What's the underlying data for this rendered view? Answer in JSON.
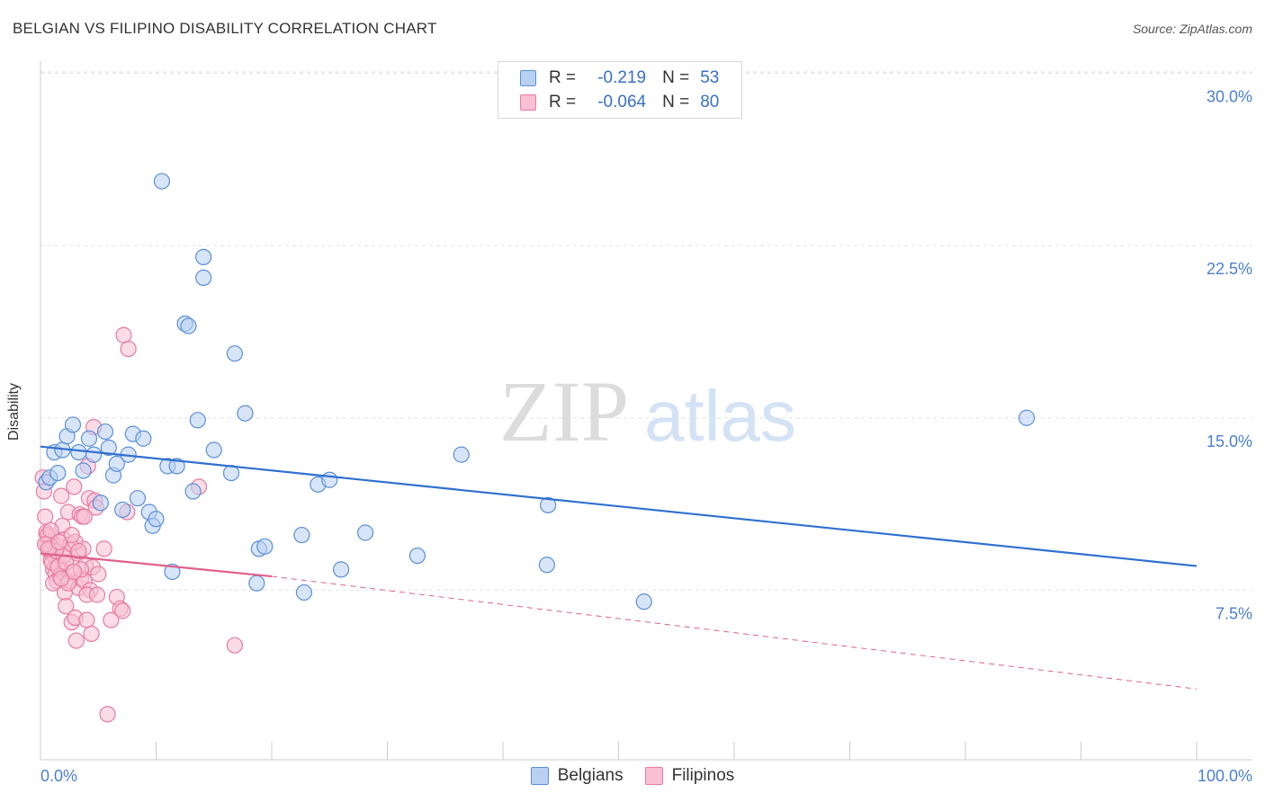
{
  "title": "BELGIAN VS FILIPINO DISABILITY CORRELATION CHART",
  "source": "Source: ZipAtlas.com",
  "watermark": {
    "part1": "ZIP",
    "part2": "atlas"
  },
  "legend_top": {
    "rows": [
      {
        "r_label": "R =",
        "r_value": "-0.219",
        "n_label": "N =",
        "n_value": "53"
      },
      {
        "r_label": "R =",
        "r_value": "-0.064",
        "n_label": "N =",
        "n_value": "80"
      }
    ]
  },
  "legend_bottom": {
    "items": [
      "Belgians",
      "Filipinos"
    ]
  },
  "colors": {
    "belgians_fill": "#b8d0f2",
    "belgians_stroke": "#5a8fd8",
    "belgians_line": "#2f6fd0",
    "filipinos_fill": "#f8c0d2",
    "filipinos_stroke": "#e87aa0",
    "filipinos_line": "#e0608a",
    "tick_label": "#4a7fd0",
    "grid": "#e2e2e2"
  },
  "chart_data": {
    "type": "scatter",
    "title": "BELGIAN VS FILIPINO DISABILITY CORRELATION CHART",
    "xlabel": "",
    "ylabel": "Disability",
    "xlim": [
      0,
      100
    ],
    "ylim": [
      0,
      31
    ],
    "x_tick_labels": [
      "0.0%",
      "100.0%"
    ],
    "y_ticks": [
      7.5,
      15.0,
      22.5,
      30.0
    ],
    "y_tick_labels": [
      "7.5%",
      "15.0%",
      "22.5%",
      "30.0%"
    ],
    "grid": "horizontal dashed",
    "legend_position": "top-center and bottom",
    "series": [
      {
        "name": "Belgians",
        "points": [
          [
            0.5,
            12.2
          ],
          [
            0.8,
            12.4
          ],
          [
            1.2,
            13.5
          ],
          [
            1.5,
            12.6
          ],
          [
            1.9,
            13.6
          ],
          [
            2.3,
            14.2
          ],
          [
            2.8,
            14.7
          ],
          [
            3.3,
            13.5
          ],
          [
            3.7,
            12.7
          ],
          [
            4.2,
            14.1
          ],
          [
            4.6,
            13.4
          ],
          [
            5.2,
            11.3
          ],
          [
            5.6,
            14.4
          ],
          [
            5.9,
            13.7
          ],
          [
            6.3,
            12.5
          ],
          [
            6.6,
            13.0
          ],
          [
            7.1,
            11.0
          ],
          [
            7.6,
            13.4
          ],
          [
            8.0,
            14.3
          ],
          [
            8.4,
            11.5
          ],
          [
            8.9,
            14.1
          ],
          [
            9.4,
            10.9
          ],
          [
            9.7,
            10.3
          ],
          [
            10.0,
            10.6
          ],
          [
            10.5,
            25.3
          ],
          [
            11.0,
            12.9
          ],
          [
            11.4,
            8.3
          ],
          [
            11.8,
            12.9
          ],
          [
            12.5,
            19.1
          ],
          [
            12.8,
            19.0
          ],
          [
            13.2,
            11.8
          ],
          [
            13.6,
            14.9
          ],
          [
            14.1,
            22.0
          ],
          [
            14.1,
            21.1
          ],
          [
            15.0,
            13.6
          ],
          [
            16.5,
            12.6
          ],
          [
            16.8,
            17.8
          ],
          [
            17.7,
            15.2
          ],
          [
            18.7,
            7.8
          ],
          [
            18.9,
            9.3
          ],
          [
            19.4,
            9.4
          ],
          [
            22.6,
            9.9
          ],
          [
            22.8,
            7.4
          ],
          [
            24.0,
            12.1
          ],
          [
            25.0,
            12.3
          ],
          [
            26.0,
            8.4
          ],
          [
            28.1,
            10.0
          ],
          [
            32.6,
            9.0
          ],
          [
            36.4,
            13.4
          ],
          [
            43.8,
            8.6
          ],
          [
            43.9,
            11.2
          ],
          [
            52.2,
            7.0
          ],
          [
            85.3,
            15.0
          ]
        ]
      },
      {
        "name": "Filipinos",
        "points": [
          [
            0.2,
            12.4
          ],
          [
            0.3,
            11.8
          ],
          [
            0.4,
            10.7
          ],
          [
            0.5,
            10.0
          ],
          [
            0.6,
            9.5
          ],
          [
            0.7,
            9.8
          ],
          [
            0.8,
            9.2
          ],
          [
            0.9,
            8.8
          ],
          [
            1.0,
            9.6
          ],
          [
            1.1,
            8.4
          ],
          [
            1.2,
            9.0
          ],
          [
            1.3,
            8.2
          ],
          [
            1.4,
            7.9
          ],
          [
            1.5,
            9.4
          ],
          [
            1.6,
            8.6
          ],
          [
            1.7,
            8.1
          ],
          [
            1.8,
            11.6
          ],
          [
            1.9,
            10.3
          ],
          [
            2.0,
            9.7
          ],
          [
            2.1,
            7.4
          ],
          [
            2.2,
            6.8
          ],
          [
            2.3,
            8.9
          ],
          [
            2.4,
            10.9
          ],
          [
            2.5,
            7.9
          ],
          [
            2.6,
            9.5
          ],
          [
            2.7,
            6.1
          ],
          [
            2.8,
            8.3
          ],
          [
            2.9,
            12.0
          ],
          [
            3.0,
            6.3
          ],
          [
            3.1,
            5.3
          ],
          [
            3.2,
            9.1
          ],
          [
            3.3,
            7.6
          ],
          [
            3.4,
            10.8
          ],
          [
            3.5,
            8.0
          ],
          [
            3.6,
            10.7
          ],
          [
            3.7,
            9.3
          ],
          [
            3.8,
            7.9
          ],
          [
            3.9,
            8.6
          ],
          [
            4.0,
            6.2
          ],
          [
            4.1,
            12.9
          ],
          [
            4.2,
            11.5
          ],
          [
            4.3,
            7.5
          ],
          [
            4.4,
            5.6
          ],
          [
            4.5,
            8.5
          ],
          [
            4.6,
            14.6
          ],
          [
            4.7,
            11.4
          ],
          [
            4.8,
            11.1
          ],
          [
            5.0,
            8.2
          ],
          [
            5.5,
            9.3
          ],
          [
            5.8,
            2.1
          ],
          [
            6.1,
            6.2
          ],
          [
            6.6,
            7.2
          ],
          [
            6.9,
            6.7
          ],
          [
            7.1,
            6.6
          ],
          [
            7.2,
            18.6
          ],
          [
            7.5,
            10.9
          ],
          [
            7.6,
            18.0
          ],
          [
            13.7,
            12.0
          ],
          [
            16.8,
            5.1
          ],
          [
            0.6,
            9.9
          ],
          [
            1.0,
            8.7
          ],
          [
            1.5,
            8.5
          ],
          [
            2.0,
            9.0
          ],
          [
            2.4,
            7.8
          ],
          [
            3.0,
            9.6
          ],
          [
            3.5,
            8.4
          ],
          [
            4.0,
            7.3
          ],
          [
            0.9,
            10.1
          ],
          [
            1.3,
            9.2
          ],
          [
            2.7,
            9.9
          ],
          [
            1.1,
            7.8
          ],
          [
            2.2,
            8.7
          ],
          [
            3.3,
            9.2
          ],
          [
            0.4,
            9.5
          ],
          [
            1.8,
            8.0
          ],
          [
            2.9,
            8.3
          ],
          [
            0.7,
            9.3
          ],
          [
            1.6,
            9.6
          ],
          [
            3.8,
            10.7
          ],
          [
            4.9,
            7.3
          ]
        ]
      }
    ],
    "trend_lines": [
      {
        "series": "Belgians",
        "x": [
          0,
          100
        ],
        "y": [
          13.75,
          8.55
        ],
        "style": "solid"
      },
      {
        "series": "Filipinos",
        "x": [
          0,
          20
        ],
        "y": [
          9.1,
          8.1
        ],
        "style": "solid"
      },
      {
        "series": "Filipinos",
        "x": [
          20,
          100
        ],
        "y": [
          8.1,
          3.2
        ],
        "style": "dashed"
      }
    ]
  }
}
